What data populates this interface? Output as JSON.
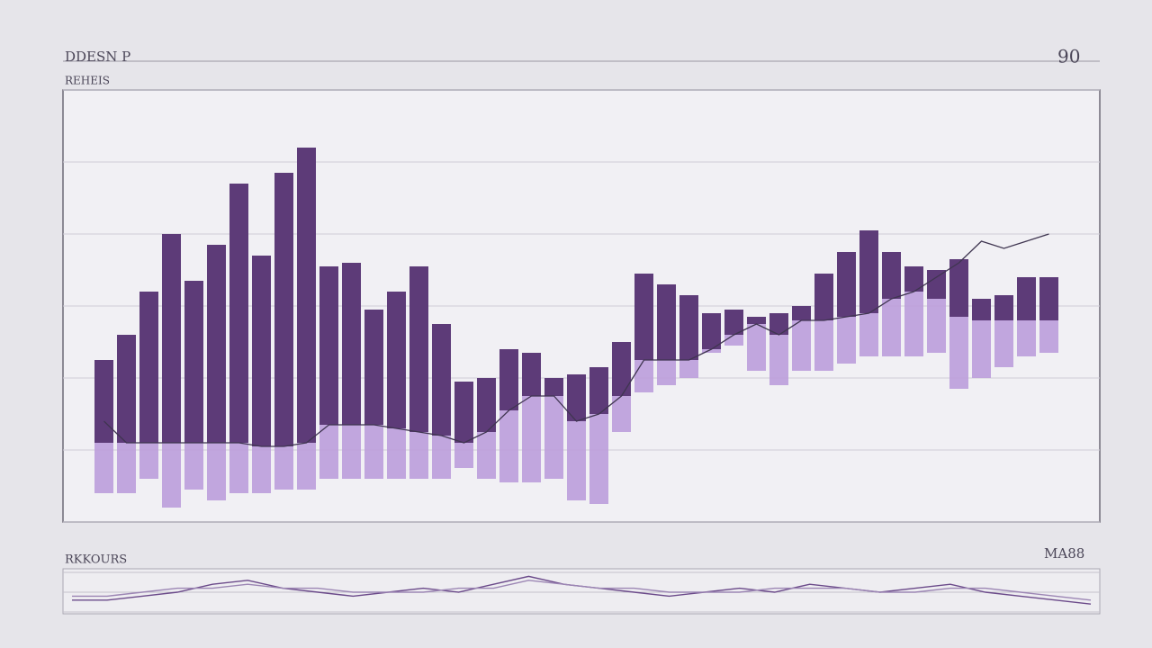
{
  "chart_data": [
    {
      "type": "range-bar",
      "title": "DDESN P",
      "subtitle": "REHEIS",
      "corner_label": "90",
      "high": [
        45,
        52,
        64,
        80,
        67,
        77,
        94,
        74,
        97,
        104,
        71,
        72,
        59,
        64,
        71,
        55,
        39,
        40,
        48,
        47,
        40,
        41,
        43,
        50,
        69,
        66,
        63,
        58,
        59,
        57,
        58,
        60,
        69,
        75,
        81,
        75,
        71,
        70,
        73,
        62,
        63,
        68,
        68
      ],
      "mid": [
        22,
        22,
        22,
        22,
        22,
        22,
        22,
        21,
        21,
        22,
        27,
        27,
        27,
        26,
        25,
        24,
        22,
        25,
        31,
        35,
        35,
        28,
        30,
        35,
        45,
        45,
        45,
        48,
        52,
        55,
        52,
        56,
        56,
        57,
        58,
        62,
        64,
        62,
        57,
        56,
        56,
        56,
        56
      ],
      "low": [
        8,
        8,
        12,
        4,
        9,
        6,
        8,
        8,
        9,
        9,
        12,
        12,
        12,
        12,
        12,
        12,
        15,
        12,
        11,
        11,
        12,
        6,
        5,
        25,
        36,
        38,
        40,
        47,
        49,
        42,
        38,
        42,
        42,
        44,
        46,
        46,
        46,
        47,
        37,
        40,
        43,
        46,
        47
      ],
      "trend": [
        28,
        22,
        22,
        22,
        22,
        22,
        22,
        21,
        21,
        22,
        27,
        27,
        27,
        26,
        25,
        24,
        22,
        25,
        31,
        35,
        35,
        28,
        30,
        35,
        45,
        45,
        45,
        48,
        52,
        55,
        52,
        56,
        56,
        57,
        58,
        62,
        64,
        68,
        72,
        78,
        76,
        78,
        80
      ],
      "high_color": "#5d3b78",
      "low_color": "#bb9ddb",
      "trend_color": "#3f3550",
      "ylim": [
        0,
        120
      ],
      "yticks": [
        0,
        20,
        40,
        60,
        80,
        100,
        120
      ],
      "grid": true
    },
    {
      "type": "line",
      "title": "RKKOURS",
      "corner_label": "MA88",
      "series": [
        {
          "name": null,
          "color": "#6b4a8a",
          "values": [
            3,
            3,
            4,
            5,
            7,
            8,
            6,
            5,
            4,
            5,
            6,
            5,
            7,
            9,
            7,
            6,
            5,
            4,
            5,
            6,
            5,
            7,
            6,
            5,
            6,
            7,
            5,
            4,
            3,
            2
          ]
        },
        {
          "name": null,
          "color": "#9c86b4",
          "values": [
            4,
            4,
            5,
            6,
            6,
            7,
            6,
            6,
            5,
            5,
            5,
            6,
            6,
            8,
            7,
            6,
            6,
            5,
            5,
            5,
            6,
            6,
            6,
            5,
            5,
            6,
            6,
            5,
            4,
            3
          ]
        }
      ],
      "ylim": [
        0,
        10
      ],
      "yticks": [
        0,
        5,
        10
      ],
      "grid": true
    }
  ]
}
